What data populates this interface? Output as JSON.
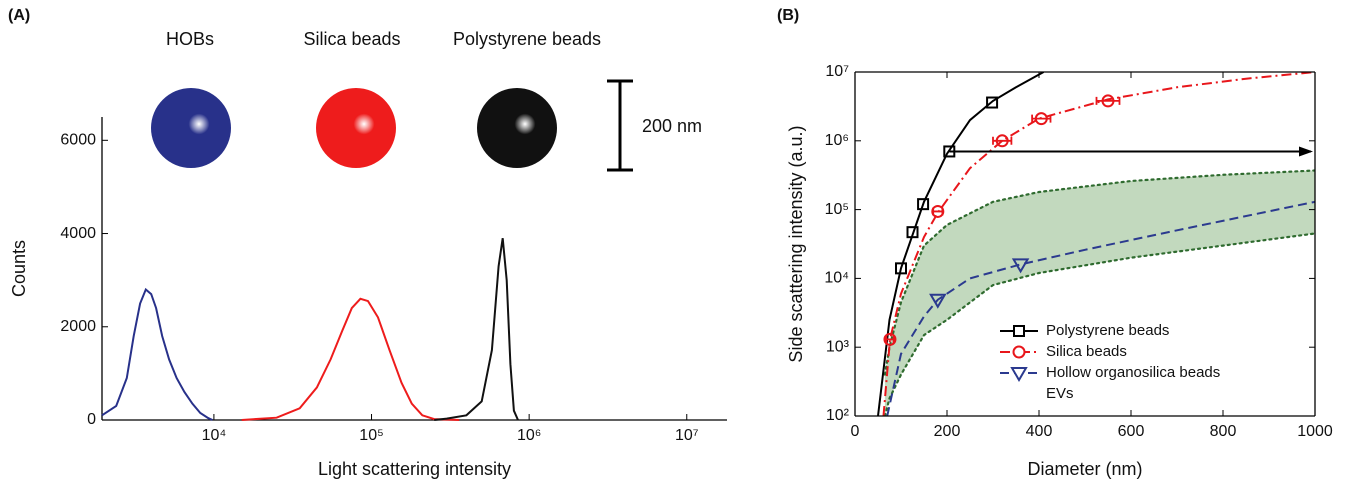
{
  "chart_data": [
    {
      "type": "line",
      "panel_label": "(A)",
      "xlabel": "Light scattering intensity",
      "ylabel": "Counts",
      "xscale": "log",
      "xlim": [
        1950,
        18000000
      ],
      "ylim": [
        0,
        6500
      ],
      "xticks": [
        {
          "value": 10000,
          "label": "10⁴"
        },
        {
          "value": 100000,
          "label": "10⁵"
        },
        {
          "value": 1000000,
          "label": "10⁶"
        },
        {
          "value": 10000000,
          "label": "10⁷"
        }
      ],
      "yticks": [
        0,
        2000,
        4000,
        6000
      ],
      "scale_bar_label": "200 nm",
      "series": [
        {
          "name": "HOBs",
          "color": "#28318a",
          "x": [
            1950,
            2400,
            2800,
            3100,
            3400,
            3700,
            4000,
            4300,
            4700,
            5200,
            5800,
            6500,
            7300,
            8200,
            9200,
            9800
          ],
          "values": [
            100,
            300,
            900,
            1800,
            2500,
            2800,
            2700,
            2400,
            1800,
            1300,
            900,
            600,
            350,
            150,
            40,
            0
          ]
        },
        {
          "name": "Silica beads",
          "color": "#ee1c1c",
          "x": [
            15000,
            25000,
            35000,
            45000,
            55000,
            65000,
            75000,
            85000,
            95000,
            110000,
            130000,
            155000,
            180000,
            210000,
            250000,
            360000
          ],
          "values": [
            0,
            50,
            250,
            700,
            1300,
            1900,
            2400,
            2600,
            2550,
            2200,
            1500,
            800,
            350,
            100,
            20,
            0
          ]
        },
        {
          "name": "Polystyrene beads",
          "color": "#111111",
          "x": [
            250000,
            300000,
            400000,
            500000,
            580000,
            640000,
            680000,
            720000,
            760000,
            800000,
            850000
          ],
          "values": [
            0,
            30,
            100,
            400,
            1500,
            3300,
            3900,
            3000,
            1200,
            200,
            0
          ]
        }
      ]
    },
    {
      "type": "scatter",
      "panel_label": "(B)",
      "xlabel": "Diameter (nm)",
      "ylabel": "Side scattering intensity (a.u.)",
      "yscale": "log",
      "xlim": [
        0,
        1000
      ],
      "ylim": [
        100,
        10000000
      ],
      "xticks": [
        0,
        200,
        400,
        600,
        800,
        1000
      ],
      "yticks": [
        {
          "value": 100,
          "label": "10²"
        },
        {
          "value": 1000,
          "label": "10³"
        },
        {
          "value": 10000,
          "label": "10⁴"
        },
        {
          "value": 100000,
          "label": "10⁵"
        },
        {
          "value": 1000000,
          "label": "10⁶"
        },
        {
          "value": 10000000,
          "label": "10⁷"
        }
      ],
      "legend": "lower right",
      "series": [
        {
          "name": "Polystyrene beads",
          "color": "#000000",
          "marker": "square",
          "line_style": "solid",
          "x": [
            100,
            125,
            148,
            205,
            298
          ],
          "values": [
            14000,
            47000,
            120000,
            700000,
            3600000
          ],
          "fit_x": [
            50,
            75,
            100,
            150,
            200,
            250,
            300,
            350,
            410
          ],
          "fit_values": [
            100,
            2500,
            14000,
            130000,
            650000,
            2000000,
            3800000,
            6000000,
            10000000
          ]
        },
        {
          "name": "Silica beads",
          "color": "#e8161b",
          "marker": "circle",
          "line_style": "dashdot",
          "x": [
            76,
            180,
            320,
            405,
            550
          ],
          "x_errors": [
            8,
            10,
            20,
            20,
            25
          ],
          "values": [
            1300,
            94000,
            1000000,
            2100000,
            3800000
          ],
          "fit_x": [
            62,
            76,
            100,
            150,
            180,
            250,
            320,
            400,
            550,
            700,
            850,
            1000
          ],
          "fit_values": [
            100,
            1300,
            6000,
            40000,
            90000,
            400000,
            1000000,
            2100000,
            4000000,
            6000000,
            8000000,
            10000000
          ]
        },
        {
          "name": "Hollow organosilica beads",
          "color": "#2b3a8f",
          "marker": "triangle-down",
          "line_style": "dashed",
          "x": [
            180,
            360
          ],
          "values": [
            4900,
            16000
          ],
          "fit_x": [
            70,
            100,
            150,
            180,
            250,
            360,
            500,
            700,
            1000
          ],
          "fit_values": [
            100,
            800,
            2800,
            4900,
            10000,
            16000,
            26000,
            50000,
            130000
          ]
        },
        {
          "name": "EVs",
          "color": "#2f6b2f",
          "fill": "#b3cfae",
          "line_style": "dotted",
          "band_x": [
            65,
            75,
            100,
            150,
            200,
            300,
            400,
            600,
            800,
            1000
          ],
          "band_lower": [
            100,
            180,
            400,
            1500,
            2500,
            8000,
            12000,
            20000,
            30000,
            45000
          ],
          "band_upper": [
            400,
            1000,
            4500,
            30000,
            60000,
            130000,
            180000,
            260000,
            320000,
            370000
          ]
        }
      ]
    }
  ]
}
